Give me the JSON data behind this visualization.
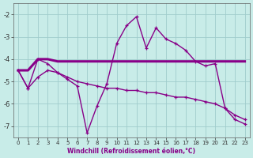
{
  "xlabel": "Windchill (Refroidissement éolien,°C)",
  "background_color": "#c8ece8",
  "grid_color": "#a0cccc",
  "line_color": "#880088",
  "xlim": [
    -0.5,
    23.5
  ],
  "ylim": [
    -7.5,
    -1.5
  ],
  "yticks": [
    -7,
    -6,
    -5,
    -4,
    -3,
    -2
  ],
  "xticks": [
    0,
    1,
    2,
    3,
    4,
    5,
    6,
    7,
    8,
    9,
    10,
    11,
    12,
    13,
    14,
    15,
    16,
    17,
    18,
    19,
    20,
    21,
    22,
    23
  ],
  "series1_x": [
    0,
    1,
    2,
    3,
    4,
    5,
    6,
    7,
    8,
    9,
    10,
    11,
    12,
    13,
    14,
    15,
    16,
    17,
    18,
    19,
    20,
    21,
    22,
    23
  ],
  "series1_y": [
    -4.5,
    -5.3,
    -4.0,
    -4.2,
    -4.6,
    -4.9,
    -5.2,
    -7.3,
    -6.1,
    -5.1,
    -3.3,
    -2.5,
    -2.1,
    -3.5,
    -2.6,
    -3.1,
    -3.3,
    -3.6,
    -4.1,
    -4.3,
    -4.2,
    -6.2,
    -6.7,
    -6.9
  ],
  "series2_x": [
    0,
    1,
    2,
    3,
    4,
    5,
    6,
    7,
    8,
    9,
    10,
    11,
    12,
    13,
    14,
    15,
    16,
    17,
    18,
    19,
    20,
    21,
    22,
    23
  ],
  "series2_y": [
    -4.5,
    -4.5,
    -4.0,
    -4.0,
    -4.1,
    -4.1,
    -4.1,
    -4.1,
    -4.1,
    -4.1,
    -4.1,
    -4.1,
    -4.1,
    -4.1,
    -4.1,
    -4.1,
    -4.1,
    -4.1,
    -4.1,
    -4.1,
    -4.1,
    -4.1,
    -4.1,
    -4.1
  ],
  "series3_x": [
    0,
    1,
    2,
    3,
    4,
    5,
    6,
    7,
    8,
    9,
    10,
    11,
    12,
    13,
    14,
    15,
    16,
    17,
    18,
    19,
    20,
    21,
    22,
    23
  ],
  "series3_y": [
    -4.5,
    -5.3,
    -4.8,
    -4.5,
    -4.6,
    -4.8,
    -5.0,
    -5.1,
    -5.2,
    -5.3,
    -5.3,
    -5.4,
    -5.4,
    -5.5,
    -5.5,
    -5.6,
    -5.7,
    -5.7,
    -5.8,
    -5.9,
    -6.0,
    -6.2,
    -6.5,
    -6.7
  ]
}
